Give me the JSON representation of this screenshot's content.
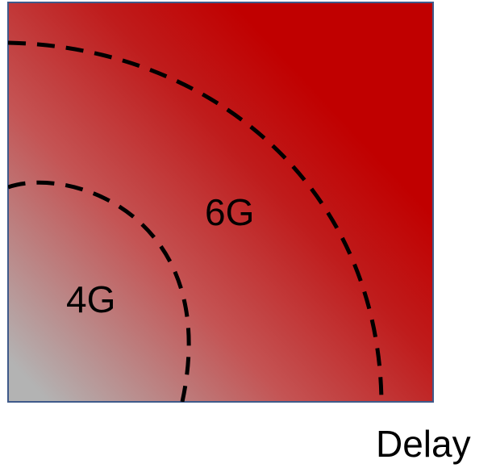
{
  "diagram": {
    "regions": [
      {
        "label": "4G"
      },
      {
        "label": "6G"
      }
    ],
    "x_axis_label": "Delay"
  },
  "colors": {
    "low": "#b3b3b3",
    "high": "#c00000",
    "border": "#3f5a8a",
    "boundary": "#000000"
  }
}
